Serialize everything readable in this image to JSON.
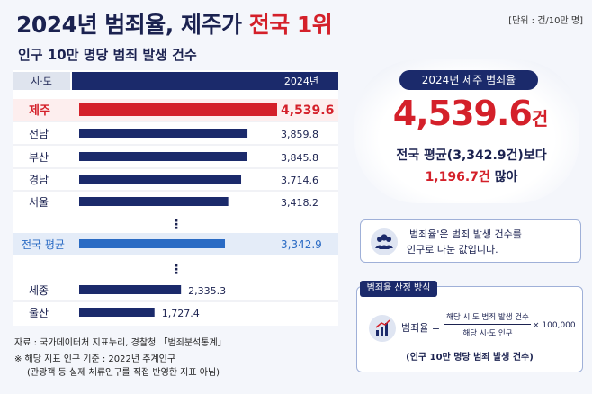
{
  "header": {
    "title_main": "2024년 범죄율, 제주가 ",
    "title_highlight": "전국 1위",
    "unit": "[단위 : 건/10만 명]",
    "subtitle": "인구 10만 명당 범죄 발생 건수"
  },
  "chart_data": {
    "type": "bar",
    "orientation": "horizontal",
    "column_header_category": "시·도",
    "column_header_value": "2024년",
    "categories": [
      "제주",
      "전남",
      "부산",
      "경남",
      "서울",
      "전국 평균",
      "세종",
      "울산"
    ],
    "values": [
      4539.6,
      3859.8,
      3845.8,
      3714.6,
      3418.2,
      3342.9,
      2335.3,
      1727.4
    ],
    "value_labels": [
      "4,539.6",
      "3,859.8",
      "3,845.8",
      "3,714.6",
      "3,418.2",
      "3,342.9",
      "2,335.3",
      "1,727.4"
    ],
    "ellipsis": "⋮",
    "highlight_color": "#d4202a",
    "bar_color": "#1b2a6b",
    "average_color": "#2a6bc4"
  },
  "footer": {
    "source": "자료 : 국가데이터처 지표누리, 경찰청 「범죄분석통계」",
    "note1": "※ 해당 지표 인구 기준 : 2022년 추계인구",
    "note2": "(관광객 등 실제 체류인구를 직접 반영한 지표 아님)"
  },
  "summary": {
    "pill": "2024년 제주 범죄율",
    "big_value": "4,539.6",
    "big_unit": "건",
    "compare_line": "전국 평균(3,342.9건)보다",
    "diff_value": "1,196.7건",
    "diff_suffix": " 많아"
  },
  "info": {
    "line1": "'범죄율'은 범죄 발생 건수를",
    "line2": "인구로 나눈 값입니다.",
    "icon": "people-icon"
  },
  "formula": {
    "header": "범죄율 산정 방식",
    "label": "범죄율 =",
    "numerator": "해당 시·도 범죄 발생 건수",
    "denominator": "해당 시·도 인구",
    "multiplier": "× 100,000",
    "note": "(인구 10만 명당 범죄 발생 건수)",
    "icon": "bar-chart-icon"
  }
}
